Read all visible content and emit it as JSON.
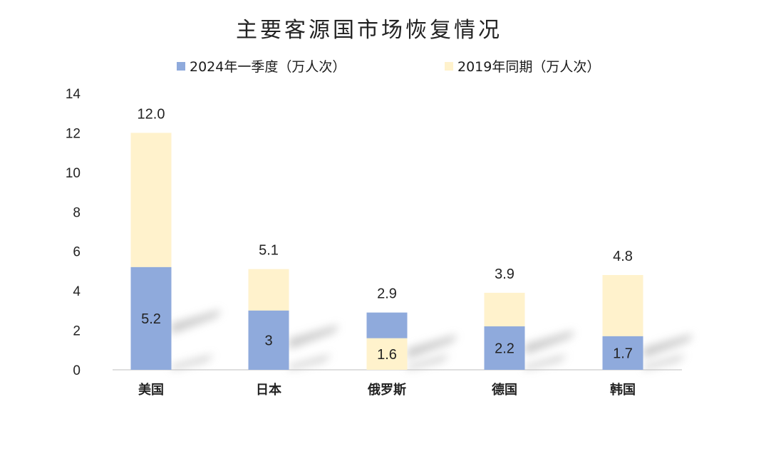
{
  "chart_data": {
    "type": "bar",
    "title": "主要客源国市场恢复情况",
    "categories": [
      "美国",
      "日本",
      "俄罗斯",
      "德国",
      "韩国"
    ],
    "series": [
      {
        "name": "2024年一季度（万人次）",
        "color": "#8faadc",
        "values": [
          5.2,
          3,
          2.9,
          2.2,
          1.7
        ]
      },
      {
        "name": "2019年同期（万人次）",
        "color": "#fff2cc",
        "values": [
          12.0,
          5.1,
          1.6,
          3.9,
          4.8
        ]
      }
    ],
    "data_labels": {
      "series_0": [
        "5.2",
        "3",
        "2.9",
        "2.2",
        "1.7"
      ],
      "series_1": [
        "12.0",
        "5.1",
        "1.6",
        "3.9",
        "4.8"
      ]
    },
    "y_ticks": [
      "0",
      "2",
      "4",
      "6",
      "8",
      "10",
      "12",
      "14"
    ],
    "ylim": [
      0,
      14
    ],
    "xlabel": "",
    "ylabel": "",
    "grid": false,
    "legend_position": "top"
  }
}
